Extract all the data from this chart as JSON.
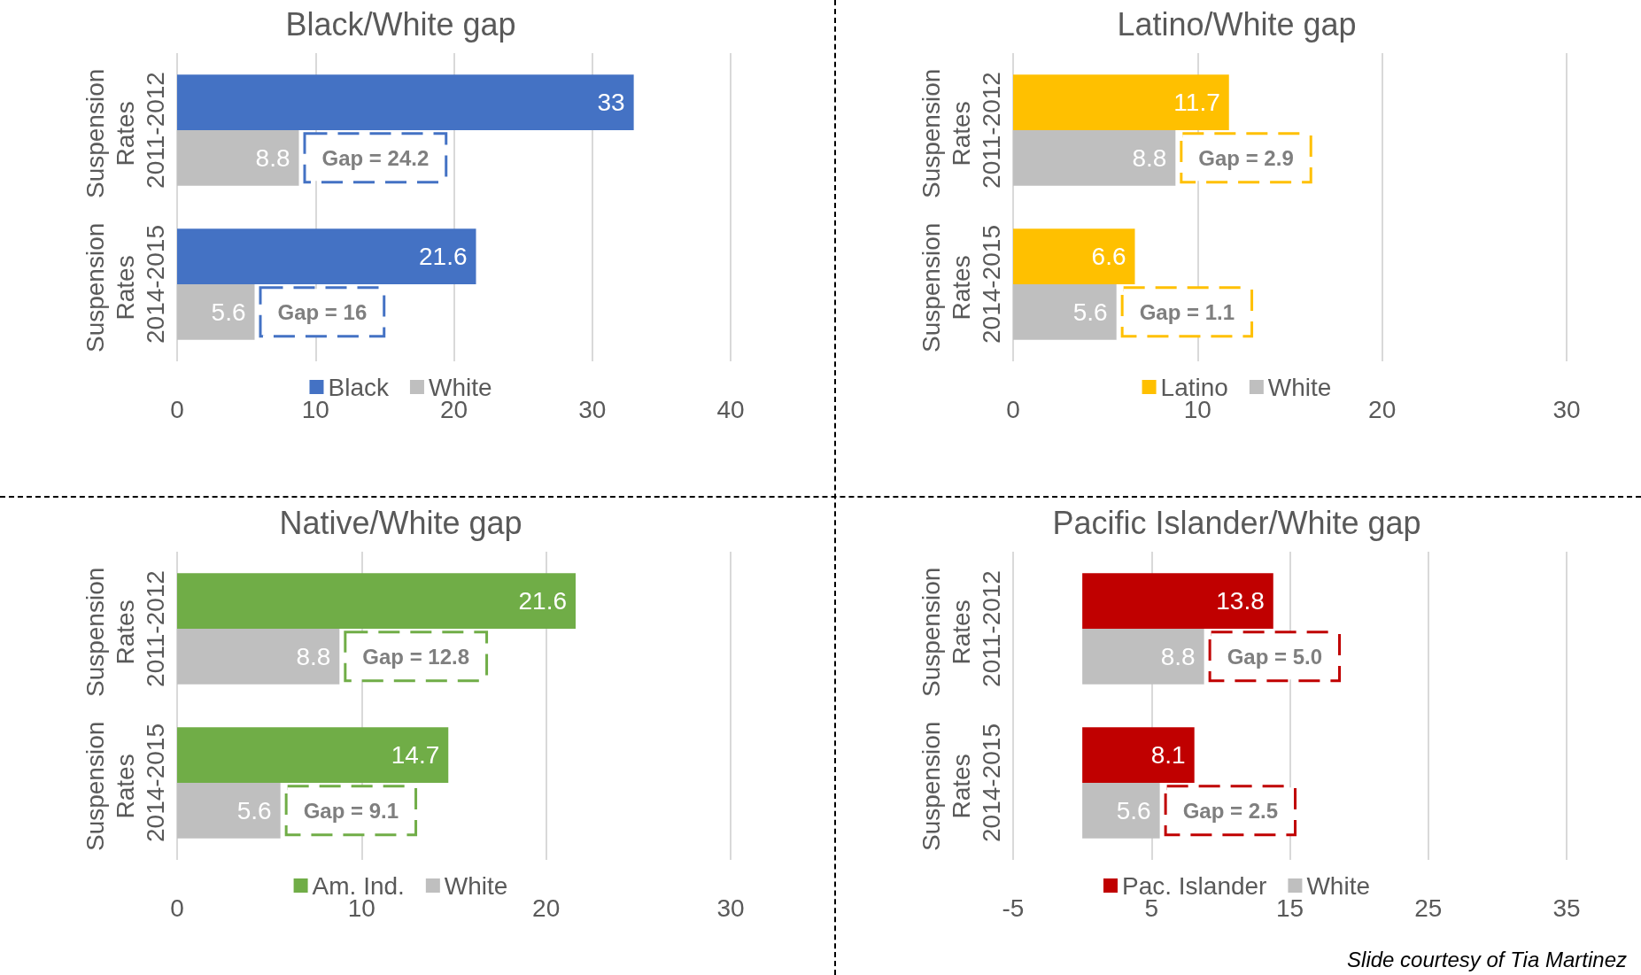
{
  "chart_data": [
    {
      "type": "bar",
      "orientation": "horizontal",
      "title": "Black/White gap",
      "categories": [
        "Suspension Rates 2011-2012",
        "Suspension Rates 2014-2015"
      ],
      "series": [
        {
          "name": "Black",
          "color": "#4472c4",
          "values": [
            33,
            21.6
          ]
        },
        {
          "name": "White",
          "color": "#bfbfbf",
          "values": [
            8.8,
            5.6
          ]
        }
      ],
      "xlim": [
        0,
        40
      ],
      "xticks": [
        0,
        10,
        20,
        30,
        40
      ],
      "grid": "x",
      "legend": "bottom",
      "data_labels": true,
      "annotations": [
        "Gap = 24.2",
        "Gap = 16"
      ]
    },
    {
      "type": "bar",
      "orientation": "horizontal",
      "title": "Latino/White gap",
      "categories": [
        "Suspension Rates 2011-2012",
        "Suspension Rates 2014-2015"
      ],
      "series": [
        {
          "name": "Latino",
          "color": "#ffc000",
          "values": [
            11.7,
            6.6
          ]
        },
        {
          "name": "White",
          "color": "#bfbfbf",
          "values": [
            8.8,
            5.6
          ]
        }
      ],
      "xlim": [
        0,
        30
      ],
      "xticks": [
        0,
        10,
        20,
        30
      ],
      "grid": "x",
      "legend": "bottom",
      "data_labels": true,
      "annotations": [
        "Gap = 2.9",
        "Gap = 1.1"
      ]
    },
    {
      "type": "bar",
      "orientation": "horizontal",
      "title": "Native/White gap",
      "categories": [
        "Suspension Rates 2011-2012",
        "Suspension Rates 2014-2015"
      ],
      "series": [
        {
          "name": "Am. Ind.",
          "color": "#70ad47",
          "values": [
            21.6,
            14.7
          ]
        },
        {
          "name": "White",
          "color": "#bfbfbf",
          "values": [
            8.8,
            5.6
          ]
        }
      ],
      "xlim": [
        0,
        30
      ],
      "xticks": [
        0,
        10,
        20,
        30
      ],
      "grid": "x",
      "legend": "bottom",
      "data_labels": true,
      "annotations": [
        "Gap = 12.8",
        "Gap = 9.1"
      ]
    },
    {
      "type": "bar",
      "orientation": "horizontal",
      "title": "Pacific Islander/White gap",
      "categories": [
        "Suspension Rates 2011-2012",
        "Suspension Rates 2014-2015"
      ],
      "series": [
        {
          "name": "Pac. Islander",
          "color": "#c00000",
          "values": [
            13.8,
            8.1
          ]
        },
        {
          "name": "White",
          "color": "#bfbfbf",
          "values": [
            8.8,
            5.6
          ]
        }
      ],
      "xlim": [
        -5,
        35
      ],
      "xticks": [
        -5,
        5,
        15,
        25,
        35
      ],
      "grid": "x",
      "legend": "bottom",
      "data_labels": true,
      "annotations": [
        "Gap = 5.0",
        "Gap = 2.5",
        "Slide courtesy of Tia Martinez"
      ]
    }
  ]
}
